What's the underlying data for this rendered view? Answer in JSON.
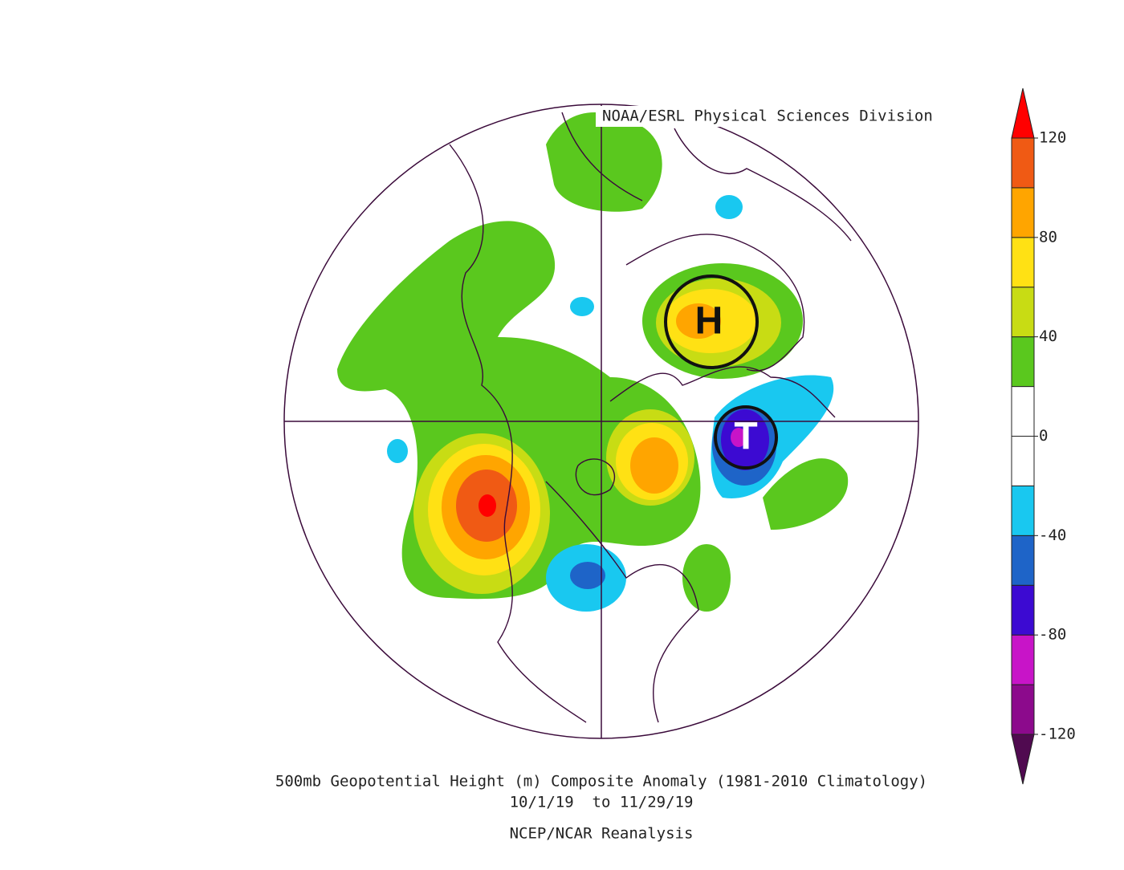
{
  "header": {
    "credit": "NOAA/ESRL Physical Sciences Division"
  },
  "map": {
    "labels": [
      "H",
      "T"
    ]
  },
  "footer": {
    "title": "500mb Geopotential Height (m) Composite Anomaly (1981-2010 Climatology)",
    "dates": "10/1/19  to 11/29/19",
    "source": "NCEP/NCAR Reanalysis"
  },
  "colorbar": {
    "lim": [
      -120,
      120
    ],
    "levels": [
      -120,
      -100,
      -80,
      -60,
      -40,
      -20,
      0,
      20,
      40,
      60,
      80,
      100,
      120
    ],
    "colors": [
      "#8c0a8c",
      "#c814c8",
      "#3c0ad2",
      "#1e64c8",
      "#19c8f0",
      "#ffffff",
      "#ffffff",
      "#5ac81e",
      "#c8dc14",
      "#ffe114",
      "#ffa500",
      "#f05a14"
    ],
    "under_color": "#500a50",
    "over_color": "#ff0000",
    "ticks": [
      -120,
      -80,
      -40,
      0,
      40,
      80,
      120
    ]
  }
}
